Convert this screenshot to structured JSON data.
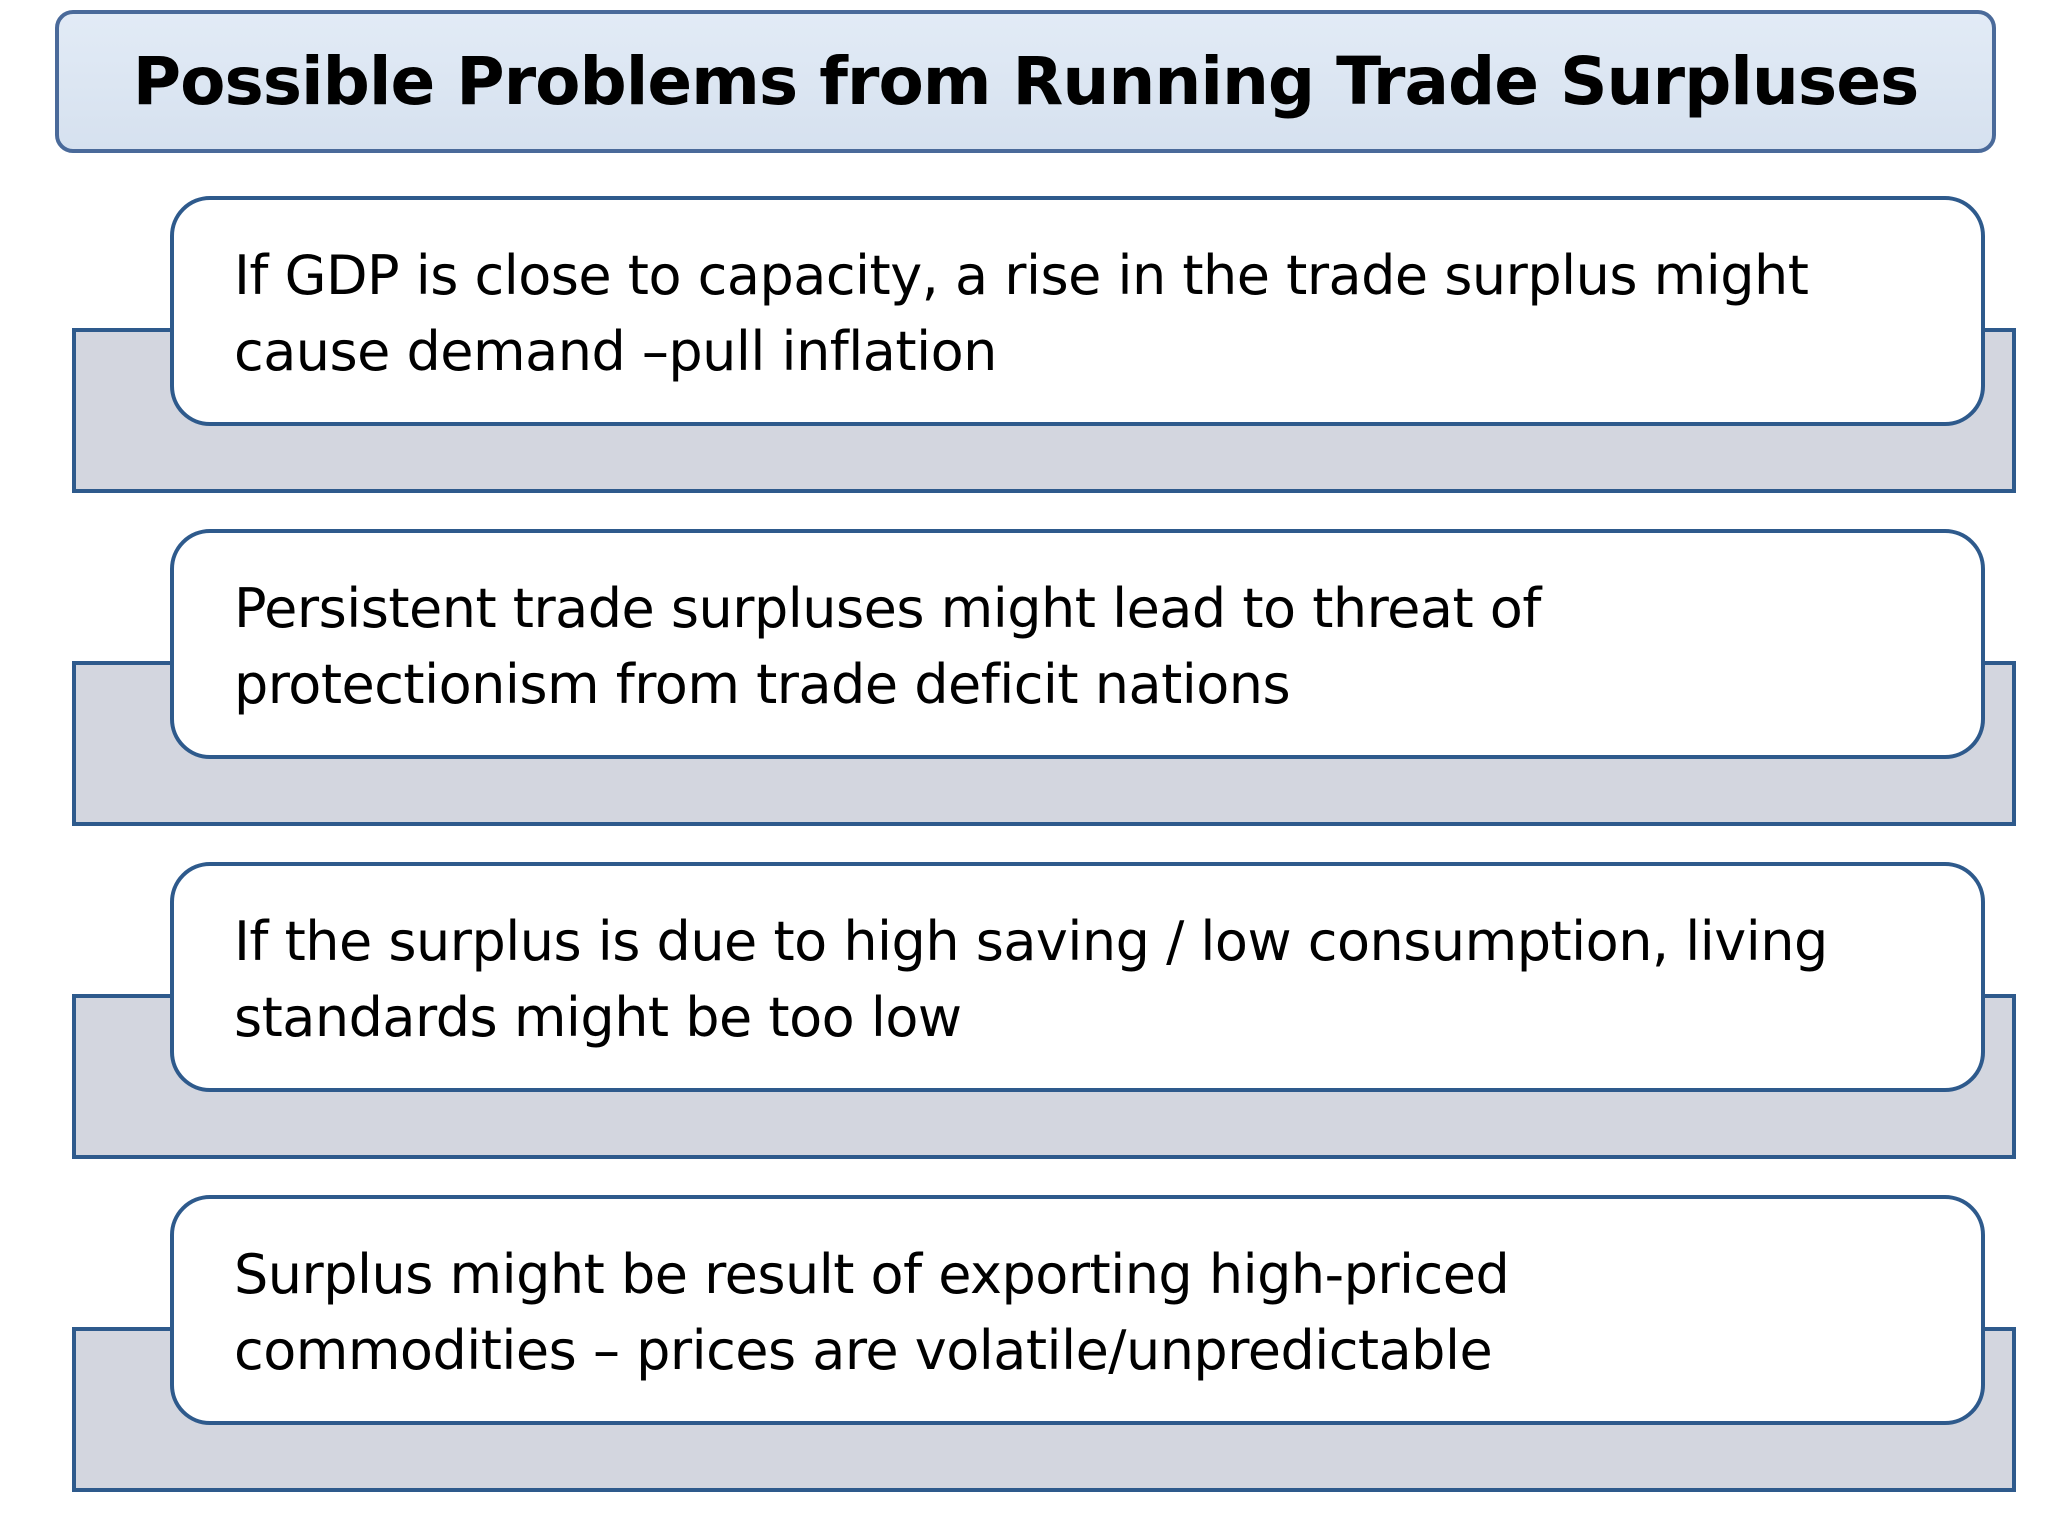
{
  "title": "Possible Problems from Running Trade Surpluses",
  "items": [
    {
      "line1": "If GDP is close to capacity, a rise in the trade surplus might",
      "line2": "cause demand –pull inflation"
    },
    {
      "line1": "Persistent trade surpluses might lead to threat of",
      "line2": "protectionism from trade deficit nations"
    },
    {
      "line1": "If the surplus is due to high saving / low consumption, living",
      "line2": "standards might be too low"
    },
    {
      "line1": "Surplus might be result of exporting high-priced",
      "line2": "commodities – prices are volatile/unpredictable"
    }
  ],
  "colors": {
    "title_fill": "#dce6f2",
    "border": "#2e5a8c",
    "base_fill": "#d3d6df",
    "card_fill": "#ffffff"
  }
}
